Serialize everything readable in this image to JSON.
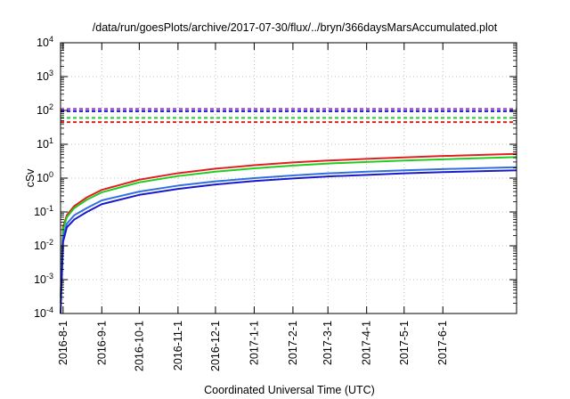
{
  "chart_data": {
    "type": "line",
    "title": "/data/run/goesPlots/archive/2017-07-30/flux/../bryn/366daysMarsAccumulated.plot",
    "xlabel": "Coordinated Universal Time (UTC)",
    "ylabel": "cSv",
    "yscale": "log",
    "ylim": [
      0.0001,
      10000
    ],
    "xlim": [
      "2016-07-30",
      "2017-07-30"
    ],
    "grid": true,
    "x_ticks": [
      "2016-8-1",
      "2016-9-1",
      "2016-10-1",
      "2016-11-1",
      "2016-12-1",
      "2017-1-1",
      "2017-2-1",
      "2017-3-1",
      "2017-4-1",
      "2017-5-1",
      "2017-6-1"
    ],
    "y_ticks": [
      {
        "base": "10",
        "exp": "-4",
        "value": 0.0001
      },
      {
        "base": "10",
        "exp": "-3",
        "value": 0.001
      },
      {
        "base": "10",
        "exp": "-2",
        "value": 0.01
      },
      {
        "base": "10",
        "exp": "-1",
        "value": 0.1
      },
      {
        "base": "10",
        "exp": "0",
        "value": 1
      },
      {
        "base": "10",
        "exp": "1",
        "value": 10
      },
      {
        "base": "10",
        "exp": "2",
        "value": 100
      },
      {
        "base": "10",
        "exp": "3",
        "value": 1000
      },
      {
        "base": "10",
        "exp": "4",
        "value": 10000
      }
    ],
    "series": [
      {
        "color": "#e02020",
        "style": "solid",
        "x": [
          "2016-07-30",
          "2016-08-01",
          "2016-08-04",
          "2016-08-10",
          "2016-08-20",
          "2016-09-01",
          "2016-10-01",
          "2016-11-01",
          "2016-12-01",
          "2017-01-01",
          "2017-02-01",
          "2017-03-01",
          "2017-04-01",
          "2017-05-01",
          "2017-06-01",
          "2017-07-30"
        ],
        "values": [
          0.0003,
          0.035,
          0.08,
          0.15,
          0.27,
          0.45,
          0.9,
          1.4,
          1.9,
          2.4,
          2.9,
          3.3,
          3.7,
          4.1,
          4.5,
          5.2
        ]
      },
      {
        "color": "#22cc22",
        "style": "solid",
        "x": [
          "2016-07-30",
          "2016-08-01",
          "2016-08-04",
          "2016-08-10",
          "2016-08-20",
          "2016-09-01",
          "2016-10-01",
          "2016-11-01",
          "2016-12-01",
          "2017-01-01",
          "2017-02-01",
          "2017-03-01",
          "2017-04-01",
          "2017-05-01",
          "2017-06-01",
          "2017-07-30"
        ],
        "values": [
          0.0003,
          0.03,
          0.07,
          0.13,
          0.23,
          0.38,
          0.75,
          1.15,
          1.55,
          1.95,
          2.35,
          2.7,
          3.0,
          3.3,
          3.6,
          4.2
        ]
      },
      {
        "color": "#3070e0",
        "style": "solid",
        "x": [
          "2016-07-30",
          "2016-08-01",
          "2016-08-04",
          "2016-08-10",
          "2016-08-20",
          "2016-09-01",
          "2016-10-01",
          "2016-11-01",
          "2016-12-01",
          "2017-01-01",
          "2017-02-01",
          "2017-03-01",
          "2017-04-01",
          "2017-05-01",
          "2017-06-01",
          "2017-07-30"
        ],
        "values": [
          0.0002,
          0.018,
          0.045,
          0.08,
          0.13,
          0.22,
          0.4,
          0.6,
          0.8,
          1.0,
          1.2,
          1.38,
          1.55,
          1.7,
          1.85,
          2.1
        ]
      },
      {
        "color": "#1a1acc",
        "style": "solid",
        "x": [
          "2016-07-30",
          "2016-08-01",
          "2016-08-04",
          "2016-08-10",
          "2016-08-20",
          "2016-09-01",
          "2016-10-01",
          "2016-11-01",
          "2016-12-01",
          "2017-01-01",
          "2017-02-01",
          "2017-03-01",
          "2017-04-01",
          "2017-05-01",
          "2017-06-01",
          "2017-07-30"
        ],
        "values": [
          0.0001,
          0.013,
          0.035,
          0.06,
          0.1,
          0.17,
          0.32,
          0.48,
          0.65,
          0.82,
          0.98,
          1.12,
          1.25,
          1.38,
          1.5,
          1.7
        ]
      },
      {
        "color": "#e02020",
        "style": "dashed",
        "x": [
          "2016-07-30",
          "2017-07-30"
        ],
        "values": [
          45,
          45
        ]
      },
      {
        "color": "#22cc22",
        "style": "dashed",
        "x": [
          "2016-07-30",
          "2017-07-30"
        ],
        "values": [
          60,
          60
        ]
      },
      {
        "color": "#1a1acc",
        "style": "dashed",
        "x": [
          "2016-07-30",
          "2017-07-30"
        ],
        "values": [
          95,
          95
        ]
      },
      {
        "color": "#9a30c8",
        "style": "dashed",
        "x": [
          "2016-07-30",
          "2017-07-30"
        ],
        "values": [
          110,
          110
        ]
      }
    ]
  }
}
